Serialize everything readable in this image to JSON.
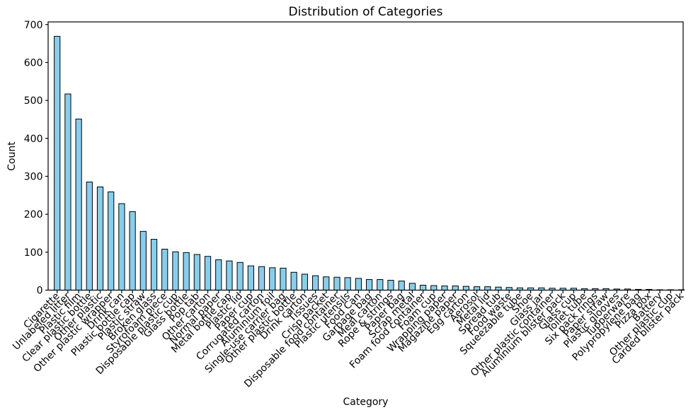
{
  "chart_data": {
    "type": "bar",
    "title": "Distribution of Categories",
    "xlabel": "Category",
    "ylabel": "Count",
    "ylim": [
      0,
      700
    ],
    "yticks": [
      0,
      100,
      200,
      300,
      400,
      500,
      600,
      700
    ],
    "grid": false,
    "legend": "none",
    "bar_color": "#87CEEB",
    "bar_edge_color": "#000000",
    "categories": [
      "Cigarette",
      "Unlabeled litter",
      "Plastic film",
      "Clear plastic bottle",
      "Other plastic",
      "Other plastic wrapper",
      "Drink can",
      "Plastic bottle cap",
      "Plastic straw",
      "Broken glass",
      "Styrofoam piece",
      "Disposable plastic cup",
      "Glass bottle",
      "Pop tab",
      "Other carton",
      "Normal paper",
      "Metal bottle cap",
      "Plastic lid",
      "Paper cup",
      "Corrugated carton",
      "Aluminium foil",
      "Single-use carrier bag",
      "Other plastic bottle",
      "Drink carton",
      "Tissues",
      "Crisp packet",
      "Disposable food container",
      "Plastic utensils",
      "Food Can",
      "Garbage bag",
      "Meal carton",
      "Rope & strings",
      "Paper bag",
      "Scrap metal",
      "Foam food container",
      "Foam cup",
      "Wrapping paper",
      "Magazine paper",
      "Egg carton",
      "Aerosol",
      "Metal lid",
      "Spread tub",
      "Food waste",
      "Squeezable tube",
      "Shoe",
      "Glass jar",
      "Other plastic container",
      "Aluminium blister pack",
      "Glass cup",
      "Toilet tube",
      "Six pack rings",
      "Paper straw",
      "Plastic glooves",
      "Tupperware",
      "Polypropylene bag",
      "Pizza box",
      "Battery",
      "Other plastic cup",
      "Carded blister pack"
    ],
    "values": [
      669,
      517,
      451,
      285,
      272,
      259,
      228,
      207,
      155,
      134,
      108,
      101,
      99,
      94,
      89,
      80,
      77,
      73,
      64,
      62,
      59,
      58,
      47,
      42,
      38,
      35,
      34,
      33,
      31,
      28,
      28,
      26,
      24,
      18,
      13,
      12,
      11,
      11,
      10,
      9,
      9,
      8,
      7,
      6,
      6,
      6,
      5,
      5,
      5,
      4,
      4,
      4,
      3,
      3,
      2,
      2,
      1,
      1,
      1
    ]
  }
}
